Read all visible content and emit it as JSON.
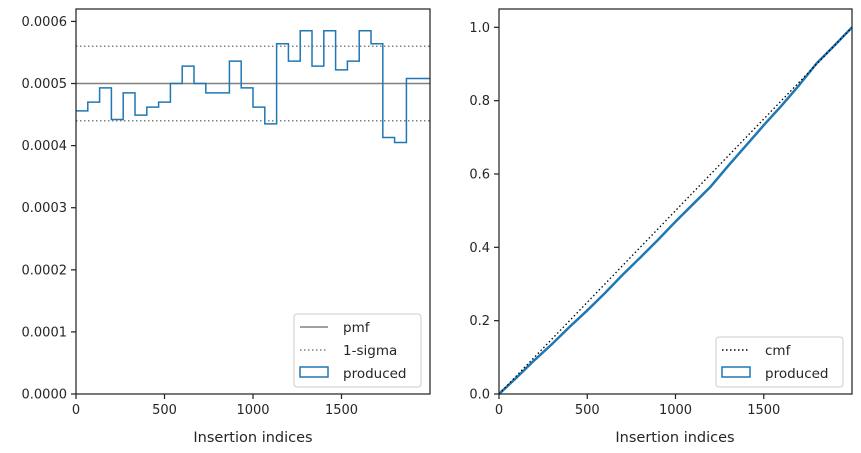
{
  "chart_data": [
    {
      "type": "histogram",
      "xlabel": "Insertion indices",
      "ylabel": "",
      "xlim": [
        0,
        2000
      ],
      "ylim": [
        0,
        0.00062
      ],
      "xticks": [
        0,
        500,
        1000,
        1500
      ],
      "yticks": [
        0,
        0.0001,
        0.0002,
        0.0003,
        0.0004,
        0.0005,
        0.0006
      ],
      "ytick_labels": [
        "0.0000",
        "0.0001",
        "0.0002",
        "0.0003",
        "0.0004",
        "0.0005",
        "0.0006"
      ],
      "bin_width": 66.67,
      "produced": [
        0.000456,
        0.00047,
        0.000493,
        0.000442,
        0.000485,
        0.000449,
        0.000462,
        0.00047,
        0.0005,
        0.000528,
        0.0005,
        0.000485,
        0.000485,
        0.000536,
        0.000493,
        0.000462,
        0.000435,
        0.000564,
        0.000536,
        0.000585,
        0.000528,
        0.000585,
        0.000522,
        0.000536,
        0.000585,
        0.000564,
        0.000413,
        0.000405,
        0.000508,
        0.000508
      ],
      "pmf": 0.0005,
      "sigma_band": [
        0.00044,
        0.00056
      ],
      "grid": false,
      "legend": {
        "position": "bottom-right",
        "entries": [
          {
            "label": "pmf",
            "style": "solid-line",
            "color": "#808080"
          },
          {
            "label": "1-sigma",
            "style": "dotted-line",
            "color": "#808080"
          },
          {
            "label": "produced",
            "style": "patch",
            "color": "#1f77b4"
          }
        ]
      }
    },
    {
      "type": "line",
      "xlabel": "Insertion indices",
      "ylabel": "",
      "xlim": [
        0,
        2000
      ],
      "ylim": [
        0,
        1.05
      ],
      "xticks": [
        0,
        500,
        1000,
        1500
      ],
      "yticks": [
        0,
        0.2,
        0.4,
        0.6,
        0.8,
        1.0
      ],
      "ytick_labels": [
        "0.0",
        "0.2",
        "0.4",
        "0.6",
        "0.8",
        "1.0"
      ],
      "cmf": {
        "x": [
          0,
          2000
        ],
        "y": [
          0,
          1
        ]
      },
      "produced": {
        "x": [
          0,
          100,
          200,
          300,
          400,
          500,
          600,
          700,
          800,
          900,
          1000,
          1100,
          1200,
          1300,
          1400,
          1500,
          1600,
          1700,
          1800,
          1900,
          2000
        ],
        "y": [
          0,
          0.045,
          0.092,
          0.136,
          0.183,
          0.228,
          0.275,
          0.325,
          0.372,
          0.42,
          0.47,
          0.518,
          0.566,
          0.623,
          0.678,
          0.733,
          0.786,
          0.842,
          0.902,
          0.95,
          1.0
        ]
      },
      "grid": false,
      "legend": {
        "position": "bottom-right",
        "entries": [
          {
            "label": "cmf",
            "style": "dotted-line",
            "color": "#000000"
          },
          {
            "label": "produced",
            "style": "patch",
            "color": "#1f77b4"
          }
        ]
      }
    }
  ]
}
